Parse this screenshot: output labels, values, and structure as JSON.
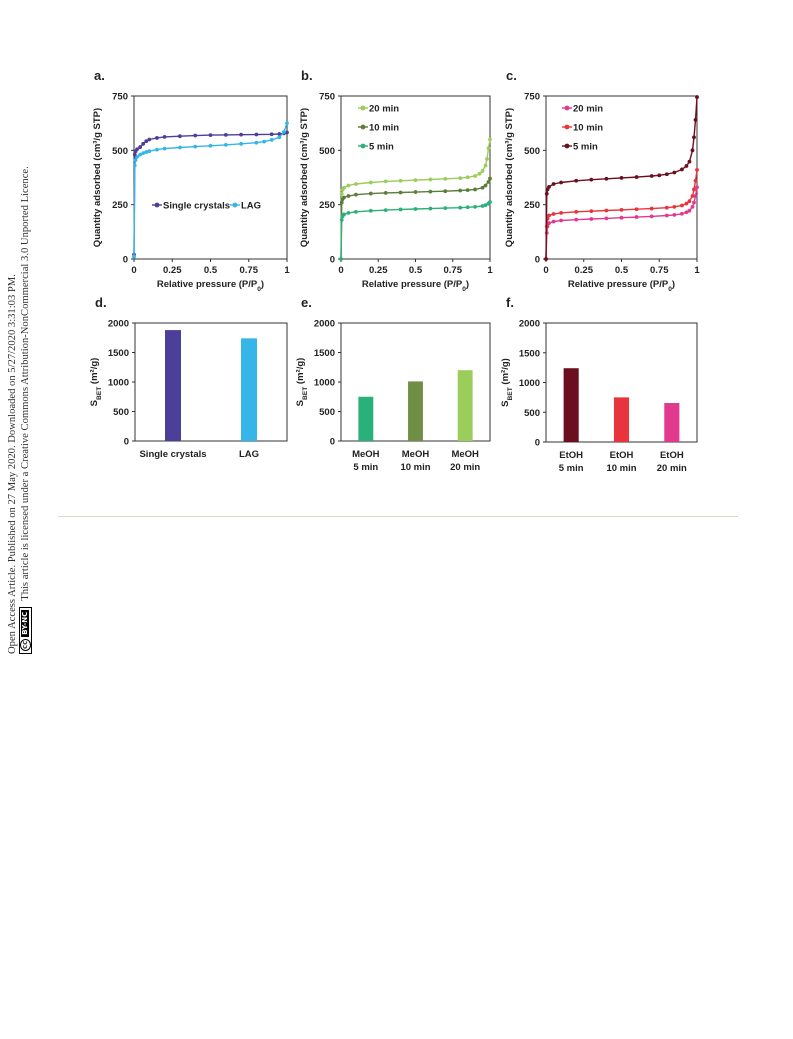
{
  "side_note": {
    "line1": "Open Access Article. Published on 27 May 2020. Downloaded on 5/27/2020 3:31:03 PM.",
    "line2": "This article is licensed under a Creative Commons Attribution-NonCommercial 3.0 Unported Licence.",
    "badge_cc": "cc",
    "badge_text": "BY-NC"
  },
  "colors": {
    "single_crystals": "#4b3f99",
    "lag": "#36b6e8",
    "meoh_20": "#9acd5a",
    "meoh_10": "#5e7d3a",
    "meoh_5": "#2ab17a",
    "etoh_20": "#e0398e",
    "etoh_10": "#e8343c",
    "etoh_5": "#6b0f1e"
  },
  "chart_data": [
    {
      "panel": "a.",
      "type": "line",
      "xlabel": "Relative pressure (P/P0)",
      "ylabel": "Quantity adsorbed (cm³/g STP)",
      "xlim": [
        0,
        1
      ],
      "ylim": [
        0,
        750
      ],
      "xticks": [
        "0",
        "0.25",
        "0.5",
        "0.75",
        "1"
      ],
      "yticks": [
        "0",
        "250",
        "500",
        "750"
      ],
      "legend": "middle-left",
      "series": [
        {
          "name": "Single crystals",
          "color": "#4b3f99",
          "x": [
            0,
            0.005,
            0.01,
            0.02,
            0.04,
            0.06,
            0.08,
            0.1,
            0.15,
            0.2,
            0.3,
            0.4,
            0.5,
            0.6,
            0.7,
            0.8,
            0.9,
            0.95,
            0.98,
            1.0
          ],
          "y": [
            20,
            480,
            495,
            505,
            515,
            530,
            542,
            550,
            557,
            562,
            565,
            568,
            570,
            571,
            572,
            573,
            574,
            575,
            578,
            582
          ]
        },
        {
          "name": "LAG",
          "color": "#36b6e8",
          "x": [
            0,
            0.005,
            0.01,
            0.02,
            0.04,
            0.06,
            0.08,
            0.1,
            0.15,
            0.2,
            0.3,
            0.4,
            0.5,
            0.6,
            0.7,
            0.8,
            0.85,
            0.9,
            0.95,
            0.98,
            1.0
          ],
          "y": [
            10,
            430,
            455,
            470,
            480,
            487,
            492,
            496,
            503,
            508,
            513,
            517,
            521,
            525,
            530,
            535,
            540,
            548,
            560,
            585,
            625
          ]
        }
      ]
    },
    {
      "panel": "b.",
      "type": "line",
      "xlabel": "Relative pressure (P/P0)",
      "ylabel": "Quantity adsorbed (cm³/g STP)",
      "xlim": [
        0,
        1
      ],
      "ylim": [
        0,
        750
      ],
      "xticks": [
        "0",
        "0.25",
        "0.5",
        "0.75",
        "1"
      ],
      "yticks": [
        "0",
        "250",
        "500",
        "750"
      ],
      "legend": "top-left",
      "series": [
        {
          "name": "20 min",
          "color": "#9acd5a",
          "x": [
            0,
            0.005,
            0.01,
            0.02,
            0.05,
            0.1,
            0.2,
            0.3,
            0.4,
            0.5,
            0.6,
            0.7,
            0.8,
            0.85,
            0.9,
            0.93,
            0.95,
            0.97,
            0.98,
            0.99,
            1.0
          ],
          "y": [
            0,
            300,
            318,
            328,
            338,
            345,
            352,
            357,
            360,
            363,
            366,
            369,
            372,
            376,
            382,
            392,
            405,
            430,
            460,
            510,
            550
          ]
        },
        {
          "name": "10 min",
          "color": "#5e7d3a",
          "x": [
            0,
            0.005,
            0.01,
            0.02,
            0.05,
            0.1,
            0.2,
            0.3,
            0.4,
            0.5,
            0.6,
            0.7,
            0.8,
            0.85,
            0.9,
            0.95,
            0.97,
            0.99,
            1.0
          ],
          "y": [
            0,
            260,
            275,
            283,
            290,
            296,
            301,
            304,
            306,
            308,
            310,
            312,
            315,
            317,
            320,
            328,
            338,
            355,
            370
          ]
        },
        {
          "name": "5 min",
          "color": "#2ab17a",
          "x": [
            0,
            0.005,
            0.01,
            0.02,
            0.05,
            0.1,
            0.2,
            0.3,
            0.4,
            0.5,
            0.6,
            0.7,
            0.8,
            0.85,
            0.9,
            0.95,
            0.97,
            0.99,
            1.0
          ],
          "y": [
            0,
            180,
            196,
            205,
            212,
            217,
            222,
            225,
            228,
            230,
            232,
            234,
            236,
            238,
            240,
            244,
            248,
            255,
            262
          ]
        }
      ]
    },
    {
      "panel": "c.",
      "type": "line",
      "xlabel": "Relative pressure (P/P0)",
      "ylabel": "Quantity adsorbed (cm³/g STP)",
      "xlim": [
        0,
        1
      ],
      "ylim": [
        0,
        750
      ],
      "xticks": [
        "0",
        "0.25",
        "0.5",
        "0.75",
        "1"
      ],
      "yticks": [
        "0",
        "250",
        "500",
        "750"
      ],
      "legend": "top-left",
      "series": [
        {
          "name": "20 min",
          "color": "#e0398e",
          "x": [
            0,
            0.005,
            0.01,
            0.02,
            0.05,
            0.1,
            0.2,
            0.3,
            0.4,
            0.5,
            0.6,
            0.7,
            0.8,
            0.85,
            0.9,
            0.93,
            0.95,
            0.97,
            0.98,
            0.99,
            1.0
          ],
          "y": [
            0,
            120,
            150,
            165,
            172,
            177,
            181,
            184,
            187,
            190,
            193,
            196,
            200,
            203,
            208,
            215,
            222,
            240,
            260,
            290,
            330
          ]
        },
        {
          "name": "10 min",
          "color": "#e8343c",
          "x": [
            0,
            0.005,
            0.01,
            0.02,
            0.05,
            0.1,
            0.2,
            0.3,
            0.4,
            0.5,
            0.6,
            0.7,
            0.8,
            0.85,
            0.9,
            0.93,
            0.95,
            0.97,
            0.98,
            0.99,
            1.0
          ],
          "y": [
            0,
            150,
            185,
            200,
            207,
            212,
            217,
            220,
            223,
            226,
            229,
            232,
            236,
            240,
            246,
            255,
            266,
            290,
            320,
            360,
            410
          ]
        },
        {
          "name": "5 min",
          "color": "#6b0f1e",
          "x": [
            0,
            0.005,
            0.01,
            0.02,
            0.05,
            0.1,
            0.2,
            0.3,
            0.4,
            0.5,
            0.6,
            0.7,
            0.75,
            0.8,
            0.85,
            0.9,
            0.93,
            0.95,
            0.97,
            0.98,
            0.99,
            1.0
          ],
          "y": [
            0,
            300,
            320,
            332,
            345,
            352,
            360,
            365,
            369,
            373,
            377,
            382,
            385,
            390,
            398,
            412,
            428,
            448,
            500,
            560,
            640,
            745
          ]
        }
      ]
    },
    {
      "panel": "d.",
      "type": "bar",
      "ylabel": "SBET (m²/g)",
      "ylim": [
        0,
        2000
      ],
      "yticks": [
        "0",
        "500",
        "1000",
        "1500",
        "2000"
      ],
      "categories": [
        [
          "Single crystals"
        ],
        [
          "LAG"
        ]
      ],
      "values": [
        1880,
        1740
      ],
      "colors": [
        "#4b3f99",
        "#36b6e8"
      ]
    },
    {
      "panel": "e.",
      "type": "bar",
      "ylabel": "SBET (m²/g)",
      "ylim": [
        0,
        2000
      ],
      "yticks": [
        "0",
        "500",
        "1000",
        "1500",
        "2000"
      ],
      "categories": [
        [
          "MeOH",
          "5 min"
        ],
        [
          "MeOH",
          "10 min"
        ],
        [
          "MeOH",
          "20 min"
        ]
      ],
      "values": [
        750,
        1010,
        1200
      ],
      "colors": [
        "#2ab17a",
        "#6f8f47",
        "#9acd5a"
      ]
    },
    {
      "panel": "f.",
      "type": "bar",
      "ylabel": "SBET (m²/g)",
      "ylim": [
        0,
        2000
      ],
      "yticks": [
        "0",
        "500",
        "1000",
        "1500",
        "2000"
      ],
      "categories": [
        [
          "EtOH",
          "5 min"
        ],
        [
          "EtOH",
          "10 min"
        ],
        [
          "EtOH",
          "20 min"
        ]
      ],
      "values": [
        1240,
        750,
        655
      ],
      "colors": [
        "#6b0f1e",
        "#e8343c",
        "#e0398e"
      ]
    }
  ]
}
